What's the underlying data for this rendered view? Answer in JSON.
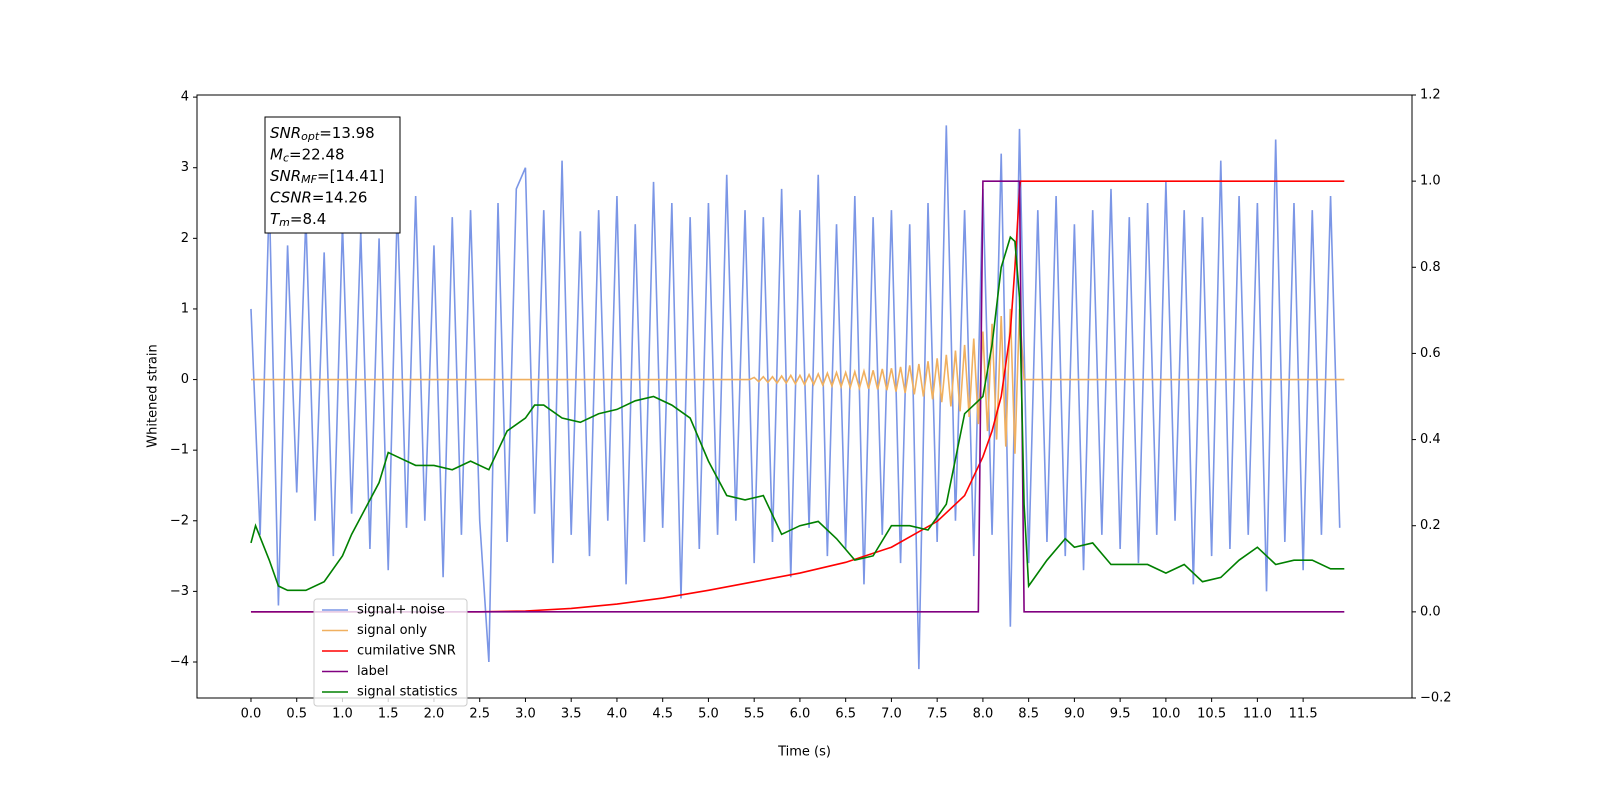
{
  "chart_data": {
    "type": "line",
    "xlabel": "Time (s)",
    "ylabel": "Whitened strain",
    "xlim": [
      -0.59,
      12.69
    ],
    "ylim": [
      -4.51,
      4.03
    ],
    "y2lim": [
      -0.2,
      1.2
    ],
    "xticks": [
      {
        "value": 0,
        "label": "0.0"
      },
      {
        "value": 0.5,
        "label": "0.5"
      },
      {
        "value": 1,
        "label": "1.0"
      },
      {
        "value": 1.5,
        "label": "1.5"
      },
      {
        "value": 2,
        "label": "2.0"
      },
      {
        "value": 2.5,
        "label": "2.5"
      },
      {
        "value": 3,
        "label": "3.0"
      },
      {
        "value": 3.5,
        "label": "3.5"
      },
      {
        "value": 4,
        "label": "4.0"
      },
      {
        "value": 4.5,
        "label": "4.5"
      },
      {
        "value": 5,
        "label": "5.0"
      },
      {
        "value": 5.5,
        "label": "5.5"
      },
      {
        "value": 6,
        "label": "6.0"
      },
      {
        "value": 6.5,
        "label": "6.5"
      },
      {
        "value": 7,
        "label": "7.0"
      },
      {
        "value": 7.5,
        "label": "7.5"
      },
      {
        "value": 8,
        "label": "8.0"
      },
      {
        "value": 8.5,
        "label": "8.5"
      },
      {
        "value": 9,
        "label": "9.0"
      },
      {
        "value": 9.5,
        "label": "9.5"
      },
      {
        "value": 10,
        "label": "10.0"
      },
      {
        "value": 10.5,
        "label": "10.5"
      },
      {
        "value": 11,
        "label": "11.0"
      },
      {
        "value": 11.5,
        "label": "11.5"
      }
    ],
    "yticks": [
      {
        "value": -4,
        "label": "−4"
      },
      {
        "value": -3,
        "label": "−3"
      },
      {
        "value": -2,
        "label": "−2"
      },
      {
        "value": -1,
        "label": "−1"
      },
      0,
      1,
      2,
      3,
      4
    ],
    "y2ticks": [
      {
        "value": -0.2,
        "label": "−0.2"
      },
      {
        "value": 0,
        "label": "0.0"
      },
      {
        "value": 0.2,
        "label": "0.2"
      },
      {
        "value": 0.4,
        "label": "0.4"
      },
      {
        "value": 0.6,
        "label": "0.6"
      },
      {
        "value": 0.8,
        "label": "0.8"
      },
      {
        "value": 1,
        "label": "1.0"
      },
      {
        "value": 1.2,
        "label": "1.2"
      }
    ],
    "legend": "lower left",
    "annotation": [
      {
        "text": "SNR",
        "sub": "opt",
        "rest": "=13.98"
      },
      {
        "text": "M",
        "sub": "c",
        "rest": "=22.48"
      },
      {
        "text": "SNR",
        "sub": "MF",
        "rest": "=[14.41]"
      },
      {
        "text": "CSNR",
        "rest": "=14.26"
      },
      {
        "text": "T",
        "sub": "m",
        "rest": "=8.4"
      }
    ],
    "series": [
      {
        "name": "signal+ noise",
        "color": "#7b96e6",
        "x": [
          0,
          0.1,
          0.2,
          0.3,
          0.4,
          0.5,
          0.6,
          0.7,
          0.8,
          0.9,
          1,
          1.1,
          1.2,
          1.3,
          1.4,
          1.5,
          1.6,
          1.7,
          1.8,
          1.9,
          2,
          2.1,
          2.2,
          2.3,
          2.4,
          2.5,
          2.6,
          2.7,
          2.8,
          2.9,
          3,
          3.1,
          3.2,
          3.3,
          3.4,
          3.5,
          3.6,
          3.7,
          3.8,
          3.9,
          4,
          4.1,
          4.2,
          4.3,
          4.4,
          4.5,
          4.6,
          4.7,
          4.8,
          4.9,
          5,
          5.1,
          5.2,
          5.3,
          5.4,
          5.5,
          5.6,
          5.7,
          5.8,
          5.9,
          6,
          6.1,
          6.2,
          6.3,
          6.4,
          6.5,
          6.6,
          6.7,
          6.8,
          6.9,
          7,
          7.1,
          7.2,
          7.3,
          7.4,
          7.5,
          7.6,
          7.7,
          7.8,
          7.9,
          8,
          8.1,
          8.2,
          8.3,
          8.4,
          8.5,
          8.6,
          8.7,
          8.8,
          8.9,
          9,
          9.1,
          9.2,
          9.3,
          9.4,
          9.5,
          9.6,
          9.7,
          9.8,
          9.9,
          10,
          10.1,
          10.2,
          10.3,
          10.4,
          10.5,
          10.6,
          10.7,
          10.8,
          10.9,
          11,
          11.1,
          11.2,
          11.3,
          11.4,
          11.5,
          11.6,
          11.7,
          11.8,
          11.9
        ],
        "values": [
          1.0,
          -2.2,
          2.6,
          -3.2,
          1.9,
          -1.6,
          2.3,
          -2.0,
          1.8,
          -2.5,
          2.2,
          -1.9,
          2.1,
          -2.4,
          2.0,
          -2.7,
          2.5,
          -2.1,
          2.6,
          -2.0,
          1.9,
          -2.8,
          2.3,
          -2.2,
          2.4,
          -2.0,
          -4.0,
          2.5,
          -2.3,
          2.7,
          3.0,
          -1.9,
          2.4,
          -2.6,
          3.1,
          -2.2,
          2.1,
          -2.5,
          2.4,
          -2.0,
          2.6,
          -2.9,
          2.2,
          -2.3,
          2.8,
          -2.1,
          2.5,
          -3.1,
          2.3,
          -2.4,
          2.5,
          -2.2,
          2.9,
          -2.0,
          2.4,
          -2.6,
          2.3,
          -2.3,
          2.7,
          -2.8,
          2.4,
          -2.1,
          2.9,
          -2.5,
          2.2,
          -2.4,
          2.6,
          -2.9,
          2.3,
          -2.2,
          2.4,
          -2.6,
          2.2,
          -4.1,
          2.5,
          -2.3,
          3.6,
          -2.0,
          2.4,
          -2.5,
          2.7,
          -2.2,
          3.2,
          -3.5,
          3.55,
          -2.6,
          2.4,
          -2.3,
          2.6,
          -2.5,
          2.2,
          -2.7,
          2.4,
          -2.2,
          2.7,
          -2.4,
          2.3,
          -2.6,
          2.5,
          -2.2,
          2.8,
          -2.0,
          2.4,
          -2.9,
          2.3,
          -2.5,
          3.1,
          -2.4,
          2.6,
          -2.2,
          2.5,
          -3.0,
          3.4,
          -2.3,
          2.5,
          -2.7,
          2.4,
          -2.2,
          2.6,
          -2.1
        ]
      },
      {
        "name": "signal only",
        "color": "#f0b060",
        "x": [
          0,
          5.45,
          5.5,
          5.55,
          5.6,
          5.65,
          5.7,
          5.75,
          5.8,
          5.85,
          5.9,
          5.95,
          6,
          6.05,
          6.1,
          6.15,
          6.2,
          6.25,
          6.3,
          6.35,
          6.4,
          6.45,
          6.5,
          6.55,
          6.6,
          6.65,
          6.7,
          6.75,
          6.8,
          6.85,
          6.9,
          6.95,
          7,
          7.05,
          7.1,
          7.15,
          7.2,
          7.25,
          7.3,
          7.35,
          7.4,
          7.45,
          7.5,
          7.55,
          7.6,
          7.65,
          7.7,
          7.75,
          7.8,
          7.85,
          7.9,
          7.95,
          8,
          8.05,
          8.1,
          8.15,
          8.2,
          8.25,
          8.3,
          8.35,
          8.4,
          8.45,
          11.95
        ],
        "values": [
          0,
          0,
          0.03,
          -0.03,
          0.04,
          -0.04,
          0.04,
          -0.05,
          0.05,
          -0.05,
          0.06,
          -0.06,
          0.06,
          -0.07,
          0.07,
          -0.07,
          0.08,
          -0.08,
          0.09,
          -0.09,
          0.1,
          -0.1,
          0.1,
          -0.11,
          0.11,
          -0.12,
          0.12,
          -0.13,
          0.13,
          -0.14,
          0.15,
          -0.15,
          0.16,
          -0.17,
          0.18,
          -0.19,
          0.2,
          -0.21,
          0.22,
          -0.24,
          0.26,
          -0.28,
          0.3,
          -0.32,
          0.35,
          -0.38,
          0.41,
          -0.45,
          0.49,
          -0.53,
          0.58,
          -0.63,
          0.68,
          -0.73,
          0.79,
          -0.85,
          0.9,
          -0.95,
          1.0,
          -1.05,
          1.0,
          0,
          0
        ]
      },
      {
        "name": "cumilative SNR",
        "color": "#ff0000",
        "axis": "y2",
        "x": [
          0,
          2.5,
          3,
          3.5,
          4,
          4.5,
          5,
          5.5,
          6,
          6.5,
          7,
          7.5,
          7.8,
          8,
          8.1,
          8.2,
          8.3,
          8.35,
          8.4,
          8.41,
          11.95
        ],
        "values": [
          0,
          0,
          0.002,
          0.008,
          0.018,
          0.032,
          0.05,
          0.07,
          0.09,
          0.115,
          0.15,
          0.21,
          0.27,
          0.36,
          0.42,
          0.5,
          0.65,
          0.8,
          0.98,
          1,
          1
        ]
      },
      {
        "name": "label",
        "color": "#800080",
        "axis": "y2",
        "x": [
          0,
          7.95,
          8,
          8.4,
          8.45,
          11.95
        ],
        "values": [
          0,
          0,
          1,
          1,
          0,
          0
        ]
      },
      {
        "name": "signal statistics",
        "color": "#008000",
        "axis": "y2",
        "x": [
          0,
          0.05,
          0.2,
          0.3,
          0.4,
          0.6,
          0.8,
          1,
          1.1,
          1.2,
          1.4,
          1.5,
          1.6,
          1.8,
          2,
          2.2,
          2.4,
          2.6,
          2.8,
          3,
          3.1,
          3.2,
          3.4,
          3.6,
          3.8,
          4,
          4.2,
          4.4,
          4.6,
          4.8,
          5,
          5.2,
          5.4,
          5.6,
          5.8,
          6,
          6.2,
          6.4,
          6.6,
          6.8,
          7,
          7.2,
          7.4,
          7.6,
          7.8,
          8,
          8.1,
          8.2,
          8.3,
          8.35,
          8.4,
          8.45,
          8.5,
          8.7,
          8.9,
          9,
          9.2,
          9.4,
          9.6,
          9.8,
          10,
          10.2,
          10.4,
          10.6,
          10.8,
          11,
          11.2,
          11.4,
          11.6,
          11.8,
          11.95
        ],
        "values": [
          0.16,
          0.2,
          0.12,
          0.06,
          0.05,
          0.05,
          0.07,
          0.13,
          0.18,
          0.22,
          0.3,
          0.37,
          0.36,
          0.34,
          0.34,
          0.33,
          0.35,
          0.33,
          0.42,
          0.45,
          0.48,
          0.48,
          0.45,
          0.44,
          0.46,
          0.47,
          0.49,
          0.5,
          0.48,
          0.45,
          0.35,
          0.27,
          0.26,
          0.27,
          0.18,
          0.2,
          0.21,
          0.17,
          0.12,
          0.13,
          0.2,
          0.2,
          0.19,
          0.25,
          0.46,
          0.5,
          0.62,
          0.8,
          0.87,
          0.86,
          0.73,
          0.25,
          0.06,
          0.12,
          0.17,
          0.15,
          0.16,
          0.11,
          0.11,
          0.11,
          0.09,
          0.11,
          0.07,
          0.08,
          0.12,
          0.15,
          0.11,
          0.12,
          0.12,
          0.1,
          0.1
        ]
      }
    ]
  }
}
